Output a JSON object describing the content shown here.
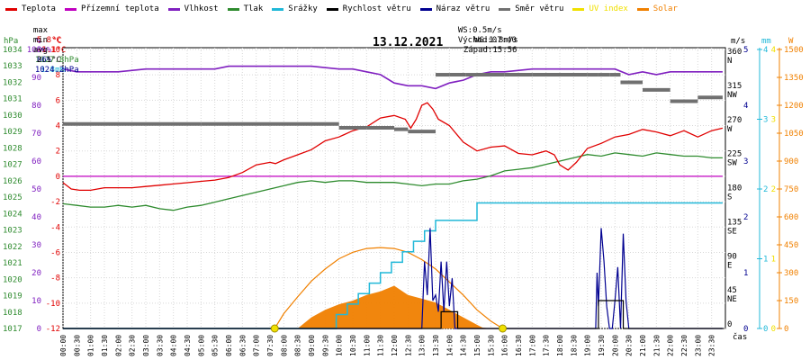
{
  "legend": [
    {
      "label": "Teplota",
      "color": "#e00000"
    },
    {
      "label": "Přízemní teplota",
      "color": "#c000c0"
    },
    {
      "label": "Vlhkost",
      "color": "#8020c0"
    },
    {
      "label": "Tlak",
      "color": "#2e8b2e"
    },
    {
      "label": "Srážky",
      "color": "#20b8d8"
    },
    {
      "label": "Rychlost větru",
      "color": "#000000"
    },
    {
      "label": "Náraz větru",
      "color": "#000090"
    },
    {
      "label": "Směr větru",
      "color": "#707070"
    },
    {
      "label": "UV index",
      "color": "#f0e000"
    },
    {
      "label": "Solar",
      "color": "#f08000"
    }
  ],
  "stats": {
    "max": {
      "label": "max",
      "temp": "5.8°C",
      "hum": "96%",
      "press": "1027.8hPa",
      "rain": "1.8mm"
    },
    "min": {
      "label": "min",
      "temp": "-1.1°C",
      "hum": "86%",
      "press": "1024.2hPa"
    },
    "avg": {
      "label": "avg",
      "temp": "2.1°C"
    }
  },
  "wind_info": {
    "ws": "WS:0.5m/s",
    "wg": "WG:1.8m/s",
    "sunrise": "Východ:07:40",
    "sunset": "Západ:15:56"
  },
  "colors": {
    "temp": "#e00000",
    "ground": "#c000c0",
    "hum": "#8020c0",
    "press": "#2e8b2e",
    "rain": "#20b8d8",
    "wind": "#000000",
    "gust": "#000090",
    "dir": "#707070",
    "uv": "#f0e000",
    "solar": "#f08000",
    "grid": "#d8d8d8"
  },
  "chart_data": {
    "type": "line",
    "title": "13.12.2021",
    "x_unit_label": "čas",
    "axes": {
      "pressure": {
        "unit": "hPa",
        "ticks": [
          1034,
          1033,
          1032,
          1031,
          1030,
          1029,
          1028,
          1027,
          1026,
          1025,
          1024,
          1023,
          1022,
          1021,
          1020,
          1019,
          1018,
          1017
        ]
      },
      "humidity": {
        "unit": "%",
        "ticks": [
          100,
          90,
          80,
          70,
          60,
          50,
          40,
          30,
          20,
          10,
          0
        ]
      },
      "temperature": {
        "unit": "°C",
        "ticks": [
          10,
          8,
          6,
          4,
          2,
          0,
          -2,
          -4,
          -6,
          -8,
          -10,
          -12
        ]
      },
      "wind_direction": {
        "unit": "m/s",
        "ticks": [
          {
            "deg": 360,
            "dir": "N"
          },
          {
            "deg": 315,
            "dir": "NW"
          },
          {
            "deg": 270,
            "dir": "W"
          },
          {
            "deg": 225,
            "dir": "SW"
          },
          {
            "deg": 180,
            "dir": "S"
          },
          {
            "deg": 135,
            "dir": "SE"
          },
          {
            "deg": 90,
            "dir": "E"
          },
          {
            "deg": 45,
            "dir": "NE"
          },
          {
            "deg": 0,
            "dir": ""
          }
        ]
      },
      "wind_speed": {
        "ticks": [
          5,
          4,
          3,
          2,
          1,
          0
        ]
      },
      "rain": {
        "unit": "mm",
        "ticks": [
          4,
          3,
          2,
          1,
          0
        ]
      },
      "uv": {
        "ticks": [
          4,
          3,
          2,
          1,
          0
        ]
      },
      "solar": {
        "unit": "W",
        "ticks": [
          1500,
          1350,
          1200,
          1050,
          900,
          750,
          600,
          450,
          300,
          150,
          0
        ]
      }
    },
    "time_ticks": [
      "00:00",
      "00:30",
      "01:00",
      "01:30",
      "02:00",
      "02:30",
      "03:00",
      "03:30",
      "04:00",
      "04:30",
      "05:00",
      "05:30",
      "06:00",
      "06:30",
      "07:00",
      "07:30",
      "08:00",
      "08:30",
      "09:00",
      "09:30",
      "10:00",
      "10:30",
      "11:00",
      "11:30",
      "12:00",
      "12:30",
      "13:00",
      "13:30",
      "14:00",
      "14:30",
      "15:00",
      "15:30",
      "16:00",
      "16:30",
      "17:00",
      "17:30",
      "18:00",
      "18:30",
      "19:00",
      "19:30",
      "20:00",
      "20:30",
      "21:00",
      "21:30",
      "22:00",
      "22:30",
      "23:00",
      "23:30"
    ],
    "series": [
      {
        "name": "Teplota",
        "axis": "temperature",
        "x": [
          0,
          0.3,
          0.6,
          1,
          1.5,
          2,
          2.5,
          3,
          3.5,
          4,
          4.5,
          5,
          5.5,
          6,
          6.5,
          7,
          7.5,
          7.7,
          8,
          8.5,
          9,
          9.5,
          10,
          10.5,
          11,
          11.5,
          12,
          12.4,
          12.6,
          12.8,
          13,
          13.2,
          13.4,
          13.6,
          14,
          14.5,
          15,
          15.5,
          16,
          16.5,
          17,
          17.5,
          17.8,
          18,
          18.3,
          18.6,
          19,
          19.5,
          20,
          20.5,
          21,
          21.5,
          22,
          22.5,
          23,
          23.5,
          23.9
        ],
        "y": [
          -0.5,
          -1,
          -1.1,
          -1.1,
          -0.9,
          -0.9,
          -0.9,
          -0.8,
          -0.7,
          -0.6,
          -0.5,
          -0.4,
          -0.3,
          -0.1,
          0.3,
          0.9,
          1.1,
          1,
          1.3,
          1.7,
          2.1,
          2.8,
          3.1,
          3.6,
          3.9,
          4.6,
          4.8,
          4.5,
          3.8,
          4.5,
          5.6,
          5.8,
          5.3,
          4.5,
          4,
          2.7,
          2,
          2.3,
          2.4,
          1.8,
          1.7,
          2,
          1.7,
          0.9,
          0.5,
          1.1,
          2.2,
          2.6,
          3.1,
          3.3,
          3.7,
          3.5,
          3.2,
          3.6,
          3.1,
          3.6,
          3.8
        ]
      },
      {
        "name": "Přízemní teplota",
        "axis": "temperature",
        "x": [
          0,
          23.9
        ],
        "y": [
          0,
          0
        ]
      },
      {
        "name": "Vlhkost",
        "axis": "humidity",
        "x": [
          0,
          0.5,
          1,
          2,
          3,
          4,
          5,
          5.5,
          6,
          7,
          8,
          9,
          10,
          10.5,
          11,
          11.5,
          12,
          12.5,
          13,
          13.5,
          14,
          14.5,
          15,
          15.5,
          16,
          17,
          18,
          19,
          20,
          20.5,
          21,
          21.5,
          22,
          23,
          23.9
        ],
        "y": [
          93,
          92,
          92,
          92,
          93,
          93,
          93,
          93,
          94,
          94,
          94,
          94,
          93,
          93,
          92,
          91,
          88,
          87,
          87,
          86,
          88,
          89,
          91,
          92,
          92,
          93,
          93,
          93,
          93,
          91,
          92,
          91,
          92,
          92,
          92
        ]
      },
      {
        "name": "Tlak",
        "axis": "pressure",
        "x": [
          0,
          0.5,
          1,
          1.5,
          2,
          2.5,
          3,
          3.5,
          4,
          4.5,
          5,
          5.5,
          6,
          6.5,
          7,
          7.5,
          8,
          8.5,
          9,
          9.5,
          10,
          10.5,
          11,
          11.5,
          12,
          12.5,
          13,
          13.5,
          14,
          14.5,
          15,
          15.5,
          16,
          16.5,
          17,
          17.5,
          18,
          18.5,
          19,
          19.5,
          20,
          20.5,
          21,
          21.5,
          22,
          22.5,
          23,
          23.5,
          23.9
        ],
        "y": [
          1024.6,
          1024.5,
          1024.4,
          1024.4,
          1024.5,
          1024.4,
          1024.5,
          1024.3,
          1024.2,
          1024.4,
          1024.5,
          1024.7,
          1024.9,
          1025.1,
          1025.3,
          1025.5,
          1025.7,
          1025.9,
          1026,
          1025.9,
          1026,
          1026,
          1025.9,
          1025.9,
          1025.9,
          1025.8,
          1025.7,
          1025.8,
          1025.8,
          1026,
          1026.1,
          1026.3,
          1026.6,
          1026.7,
          1026.8,
          1027,
          1027.2,
          1027.4,
          1027.6,
          1027.5,
          1027.7,
          1027.6,
          1027.5,
          1027.7,
          1027.6,
          1027.5,
          1027.5,
          1027.4,
          1027.4
        ]
      },
      {
        "name": "Srážky",
        "axis": "rain",
        "x": [
          0,
          9.5,
          9.9,
          10.3,
          10.7,
          11.1,
          11.5,
          11.9,
          12.3,
          12.7,
          13.1,
          13.5,
          14.0,
          14.6,
          15.0,
          23.9
        ],
        "y": [
          0,
          0,
          0.2,
          0.35,
          0.5,
          0.65,
          0.8,
          0.95,
          1.1,
          1.25,
          1.4,
          1.55,
          1.55,
          1.55,
          1.8,
          1.8
        ]
      },
      {
        "name": "Rychlost větru",
        "axis": "wind_speed",
        "x": [
          0,
          13.5,
          13.7,
          13.9,
          14.1,
          14.3,
          19.3,
          19.4,
          19.6,
          19.8,
          20.0,
          20.3,
          20.5,
          23.9
        ],
        "y": [
          0,
          0,
          0.3,
          0.3,
          0.3,
          0,
          0,
          0.5,
          0.5,
          0.5,
          0.5,
          0,
          0,
          0
        ]
      },
      {
        "name": "Náraz větru",
        "axis": "wind_speed",
        "x": [
          0,
          13.0,
          13.1,
          13.2,
          13.3,
          13.4,
          13.5,
          13.6,
          13.7,
          13.8,
          13.9,
          14.0,
          14.1,
          14.2,
          14.3,
          19.3,
          19.35,
          19.4,
          19.5,
          19.6,
          19.7,
          19.8,
          19.9,
          20.0,
          20.1,
          20.2,
          20.3,
          20.4,
          20.5,
          20.6,
          20.7,
          23.9
        ],
        "y": [
          0,
          0,
          1.2,
          0.6,
          1.8,
          0.5,
          0.6,
          0.3,
          1.2,
          0.3,
          1.2,
          0.4,
          0.9,
          0,
          0,
          0,
          1.0,
          0.4,
          1.8,
          1.2,
          0.4,
          0,
          0,
          0.5,
          1.1,
          0,
          1.7,
          0.5,
          0,
          0,
          0,
          0
        ]
      },
      {
        "name": "Směr větru",
        "axis": "wind_direction",
        "x": [
          0,
          5,
          6,
          9,
          10,
          11,
          12,
          12.5,
          13.5,
          14.0,
          14.6,
          15,
          16,
          17,
          18,
          19,
          19.4,
          19.8,
          20.2,
          21,
          22,
          23,
          23.9
        ],
        "y": [
          270,
          270,
          270,
          270,
          265,
          265,
          263,
          260,
          335,
          335,
          335,
          335,
          335,
          335,
          335,
          335,
          335,
          335,
          325,
          315,
          300,
          305,
          305
        ]
      },
      {
        "name": "UV index",
        "axis": "uv",
        "x": [
          7.67,
          15.93
        ],
        "y": [
          0,
          0
        ]
      },
      {
        "name": "Solar",
        "axis": "solar",
        "kind": "area",
        "x": [
          0,
          8.5,
          9,
          9.5,
          10,
          10.5,
          11,
          11.5,
          12,
          12.5,
          13,
          13.5,
          14,
          14.5,
          15,
          15.2,
          15.5,
          23.9
        ],
        "y": [
          0,
          0,
          60,
          100,
          130,
          150,
          180,
          200,
          230,
          180,
          160,
          140,
          100,
          60,
          20,
          5,
          0,
          0
        ]
      },
      {
        "name": "Solar max",
        "axis": "solar",
        "kind": "line",
        "x": [
          7.67,
          8,
          8.5,
          9,
          9.5,
          10,
          10.5,
          11,
          11.5,
          12,
          12.5,
          13,
          13.5,
          14,
          14.5,
          15,
          15.5,
          15.93
        ],
        "y": [
          0,
          80,
          170,
          255,
          320,
          375,
          410,
          430,
          435,
          430,
          410,
          370,
          320,
          250,
          180,
          100,
          40,
          0
        ]
      }
    ]
  }
}
